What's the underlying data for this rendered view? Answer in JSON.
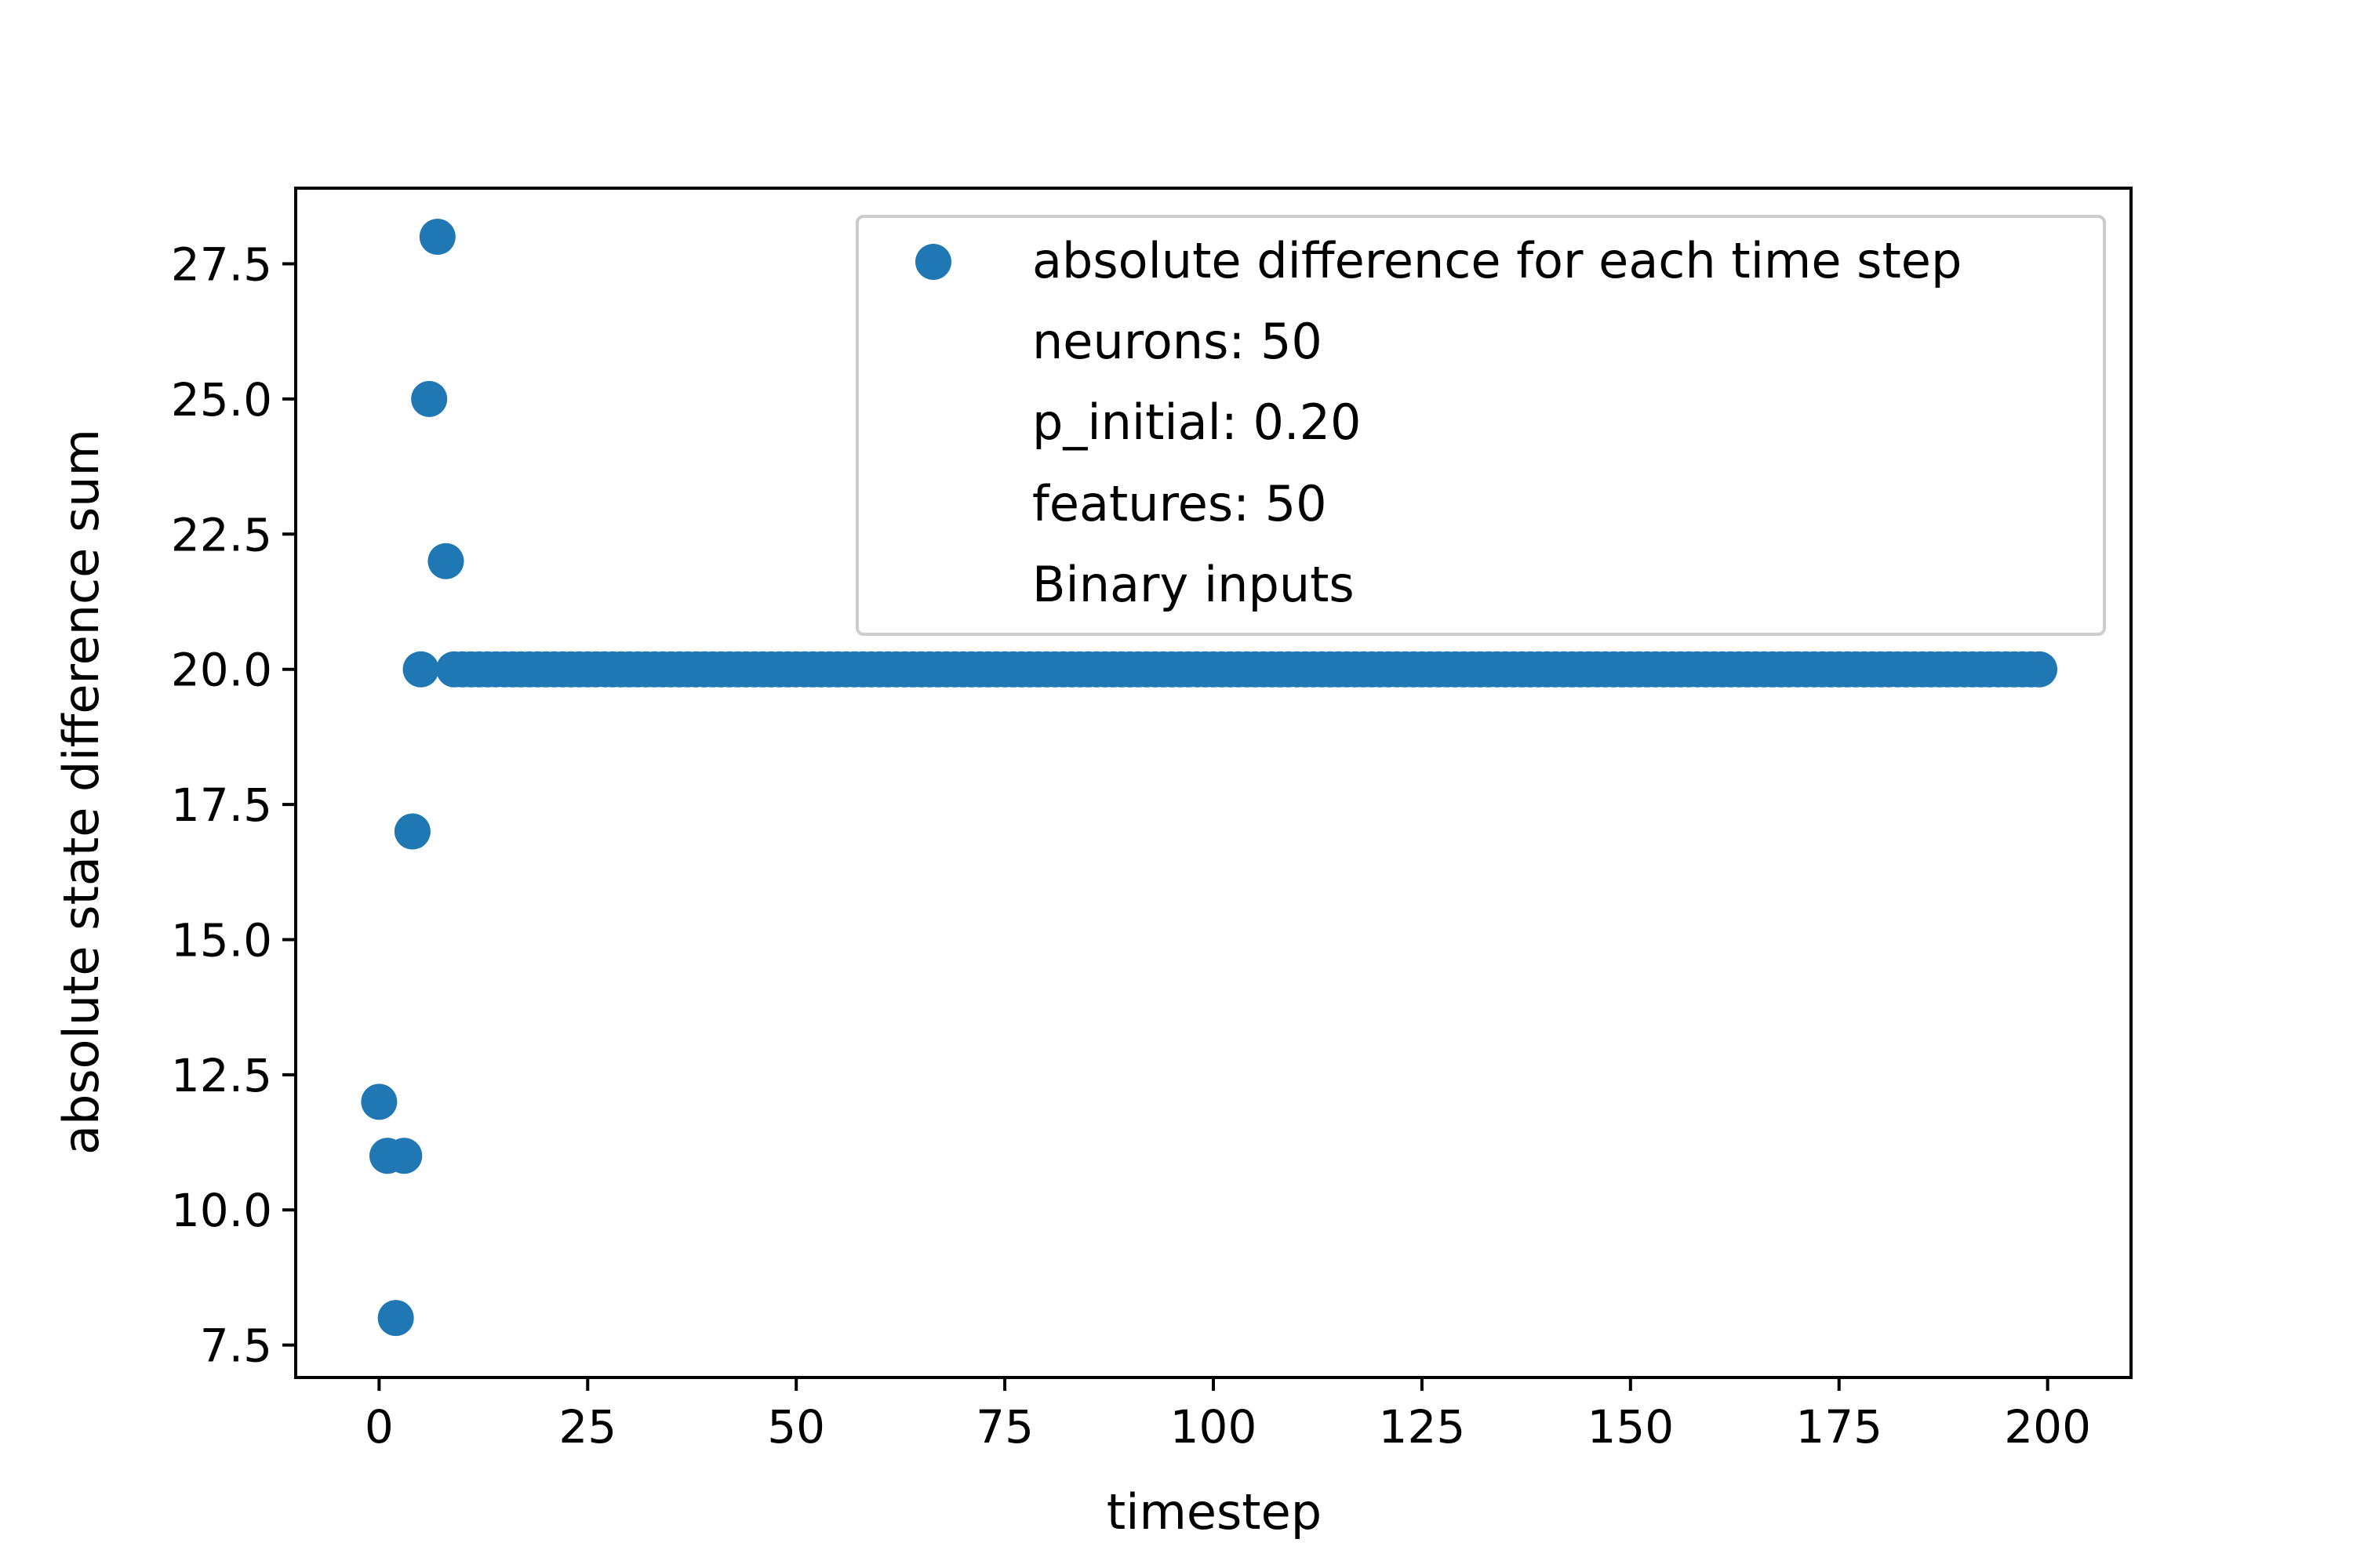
{
  "chart_data": {
    "type": "scatter",
    "xlabel": "timestep",
    "ylabel": "absolute state difference sum",
    "xlim": [
      -10,
      210
    ],
    "ylim": [
      6.9,
      28.9
    ],
    "xticks": [
      0,
      25,
      50,
      75,
      100,
      125,
      150,
      175,
      200
    ],
    "xtick_labels": [
      "0",
      "25",
      "50",
      "75",
      "100",
      "125",
      "150",
      "175",
      "200"
    ],
    "yticks": [
      7.5,
      10.0,
      12.5,
      15.0,
      17.5,
      20.0,
      22.5,
      25.0,
      27.5
    ],
    "ytick_labels": [
      "7.5",
      "10.0",
      "12.5",
      "15.0",
      "17.5",
      "20.0",
      "22.5",
      "25.0",
      "27.5"
    ],
    "grid": false,
    "legend_position": "top-right",
    "color": "#1f77b4",
    "series": [
      {
        "name": "absolute difference for each time step",
        "points": [
          [
            0,
            12
          ],
          [
            1,
            11
          ],
          [
            2,
            8
          ],
          [
            3,
            11
          ],
          [
            4,
            17
          ],
          [
            5,
            20
          ],
          [
            6,
            25
          ],
          [
            7,
            28
          ],
          [
            8,
            22
          ]
        ],
        "constant_run": {
          "x_start": 9,
          "x_end": 199,
          "y": 20
        }
      }
    ],
    "legend_entries": [
      "absolute difference for each time step",
      "neurons: 50",
      "p_initial: 0.20",
      "features: 50",
      "Binary inputs"
    ]
  }
}
